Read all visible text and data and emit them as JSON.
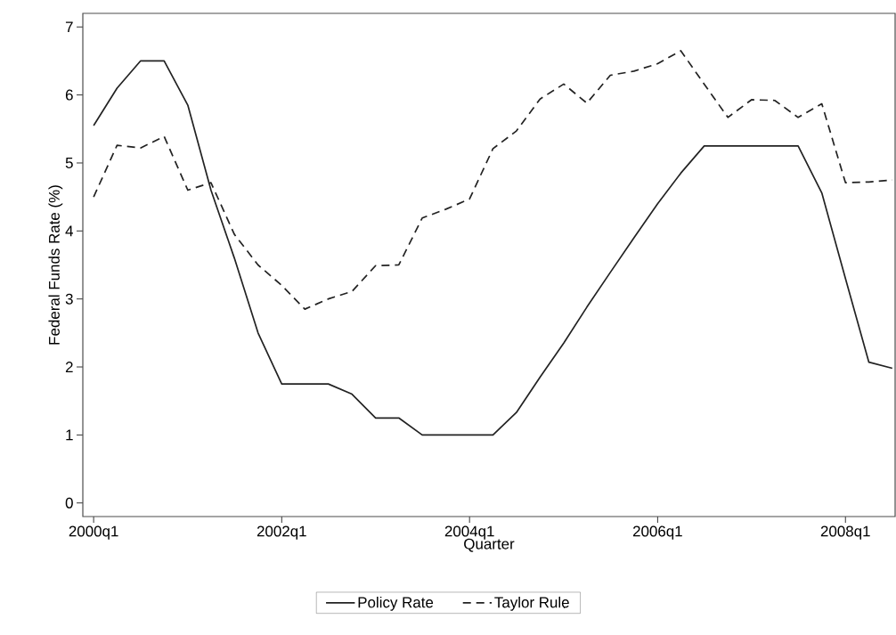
{
  "chart_data": {
    "type": "line",
    "xlabel": "Quarter",
    "ylabel": "Federal Funds Rate (%)",
    "x": [
      "2000-01",
      "2000-04",
      "2000-07",
      "2000-10",
      "2001-01",
      "2001-04",
      "2001-07",
      "2001-10",
      "2002-01",
      "2002-04",
      "2002-07",
      "2002-10",
      "2003-01",
      "2003-04",
      "2003-07",
      "2003-10",
      "2004-01",
      "2004-04",
      "2004-07",
      "2004-10",
      "2005-01",
      "2005-04",
      "2005-07",
      "2005-10",
      "2006-01",
      "2006-04",
      "2006-07",
      "2006-10",
      "2007-01",
      "2007-04",
      "2007-07",
      "2007-10",
      "2008-01",
      "2008-04",
      "2008-07"
    ],
    "series": [
      {
        "name": "Policy Rate",
        "color": "#222222",
        "line_style": "solid",
        "values": [
          5.55,
          6.1,
          6.5,
          6.5,
          5.85,
          4.6,
          3.6,
          2.5,
          1.75,
          1.75,
          1.75,
          1.6,
          1.25,
          1.25,
          1.0,
          1.0,
          1.0,
          1.0,
          1.33,
          1.85,
          2.35,
          2.88,
          3.39,
          3.9,
          4.4,
          4.85,
          5.25,
          5.25,
          5.25,
          5.25,
          5.25,
          4.56,
          3.3,
          2.07,
          1.98
        ]
      },
      {
        "name": "Taylor Rule",
        "color": "#222222",
        "line_style": "dashed",
        "values": [
          4.5,
          5.26,
          5.22,
          5.39,
          4.6,
          4.71,
          3.95,
          3.5,
          3.2,
          2.85,
          3.0,
          3.11,
          3.49,
          3.5,
          4.19,
          4.32,
          4.47,
          5.21,
          5.47,
          5.94,
          6.16,
          5.88,
          6.29,
          6.35,
          6.46,
          6.65,
          6.16,
          5.67,
          5.93,
          5.92,
          5.67,
          5.87,
          4.71,
          4.72,
          4.75
        ]
      }
    ],
    "xlim": [
      "1999-11-20",
      "2008-07-12"
    ],
    "xticks": [
      {
        "value": "2000-01",
        "label": "2000q1"
      },
      {
        "value": "2002-01",
        "label": "2002q1"
      },
      {
        "value": "2004-01",
        "label": "2004q1"
      },
      {
        "value": "2006-01",
        "label": "2006q1"
      },
      {
        "value": "2008-01",
        "label": "2008q1"
      }
    ],
    "ylim": [
      -0.2,
      7.2
    ],
    "yticks": [
      0,
      1,
      2,
      3,
      4,
      5,
      6,
      7
    ],
    "grid": false,
    "legend": "bottom",
    "marker": "none"
  }
}
